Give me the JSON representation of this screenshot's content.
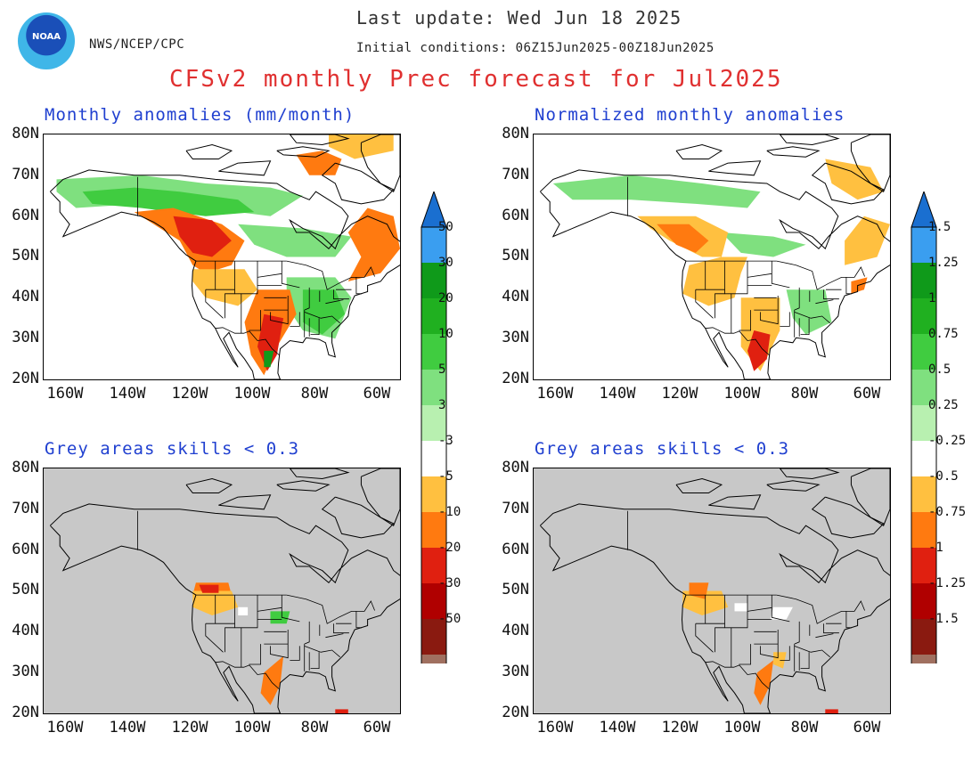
{
  "header": {
    "agency": "NWS/NCEP/CPC",
    "logo_text": "NOAA",
    "last_update": "Last update: Wed Jun 18 2025",
    "initial_conditions": "Initial conditions: 06Z15Jun2025-00Z18Jun2025",
    "title": "CFSv2 monthly Prec forecast for Jul2025",
    "title_color": "#e03030",
    "subtitle_color": "#2040d0"
  },
  "panels": {
    "top_left_title": "Monthly anomalies (mm/month)",
    "top_right_title": "Normalized monthly anomalies",
    "bottom_left_title": "Grey areas skills < 0.3",
    "bottom_right_title": "Grey areas skills < 0.3"
  },
  "axes": {
    "lat_labels": [
      "80N",
      "70N",
      "60N",
      "50N",
      "40N",
      "30N",
      "20N"
    ],
    "lon_labels": [
      "160W",
      "140W",
      "120W",
      "100W",
      "80W",
      "60W"
    ]
  },
  "colorbars": {
    "left": {
      "labels": [
        "50",
        "30",
        "20",
        "10",
        "5",
        "3",
        "-3",
        "-5",
        "-10",
        "-20",
        "-30",
        "-50"
      ]
    },
    "right": {
      "labels": [
        "1.5",
        "1.25",
        "1",
        "0.75",
        "0.5",
        "0.25",
        "-0.25",
        "-0.5",
        "-0.75",
        "-1",
        "-1.25",
        "-1.5"
      ]
    },
    "colors": [
      "#1a6fd0",
      "#3a9ef0",
      "#0f9a1a",
      "#20b020",
      "#40cc40",
      "#7fe07f",
      "#b8f0b0",
      "#ffffff",
      "#ffc040",
      "#ff7a10",
      "#e02010",
      "#b00000",
      "#8a1a10",
      "#a07060",
      "#5a3a30"
    ]
  },
  "map_colors": {
    "grey": "#c8c8c8",
    "ocean": "#ffffff"
  }
}
